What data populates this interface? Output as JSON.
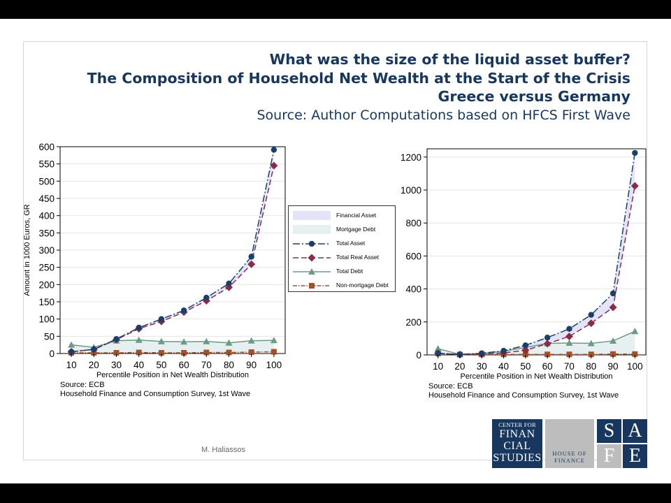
{
  "title": {
    "line1": "What was the size of the liquid asset buffer?",
    "line2": "The Composition of Household Net Wealth at the Start of the Crisis",
    "line3": "Greece versus Germany",
    "source": "Source: Author Computations based on HFCS  First Wave"
  },
  "colors": {
    "title": "#17375e",
    "financial_asset_fill": "#e4e4f8",
    "mortgage_debt_fill": "#e6f0f0",
    "total_asset": "#1a3f6b",
    "total_real_asset": "#8b2b45",
    "total_debt": "#6b9a85",
    "non_mortgage_debt": "#a0522d"
  },
  "legend": {
    "items": [
      {
        "label": "Financial Asset",
        "kind": "area-fin"
      },
      {
        "label": "Mortgage Debt",
        "kind": "area-mort"
      },
      {
        "label": "Total Asset",
        "kind": "line-total-asset"
      },
      {
        "label": "Total Real Asset",
        "kind": "line-real-asset"
      },
      {
        "label": "Total Debt",
        "kind": "line-total-debt"
      },
      {
        "label": "Non-mortgage Debt",
        "kind": "line-nonmort"
      }
    ]
  },
  "chart_data": [
    {
      "type": "line",
      "id": "greece",
      "x": [
        10,
        20,
        30,
        40,
        50,
        60,
        70,
        80,
        90,
        100
      ],
      "xlabel": "Percentile Position in Net Wealth Distribution",
      "ylabel": "Amount in 1000 Euros, GR",
      "ylim": [
        0,
        600
      ],
      "yticks": [
        0,
        50,
        100,
        150,
        200,
        250,
        300,
        350,
        400,
        450,
        500,
        550,
        600
      ],
      "xticks": [
        10,
        20,
        30,
        40,
        50,
        60,
        70,
        80,
        90,
        100
      ],
      "series": [
        {
          "name": "Total Asset",
          "values": [
            5,
            12,
            42,
            75,
            100,
            125,
            162,
            203,
            281,
            591
          ]
        },
        {
          "name": "Total Real Asset",
          "values": [
            5,
            12,
            40,
            72,
            93,
            120,
            153,
            192,
            259,
            545
          ]
        },
        {
          "name": "Total Debt",
          "values": [
            25,
            18,
            37,
            39,
            35,
            34,
            35,
            31,
            37,
            38
          ]
        },
        {
          "name": "Non-mortgage Debt",
          "values": [
            2,
            2,
            2,
            3,
            2,
            2,
            3,
            3,
            4,
            5
          ]
        }
      ],
      "note1": "Source: ECB",
      "note2": "Household Finance and Consumption Survey, 1st Wave"
    },
    {
      "type": "line",
      "id": "germany",
      "x": [
        10,
        20,
        30,
        40,
        50,
        60,
        70,
        80,
        90,
        100
      ],
      "xlabel": "Percentile Position in Net Wealth Distribution",
      "ylabel": "",
      "ylim": [
        0,
        1250
      ],
      "yticks": [
        0,
        200,
        400,
        600,
        800,
        1000,
        1200
      ],
      "xticks": [
        10,
        20,
        30,
        40,
        50,
        60,
        70,
        80,
        90,
        100
      ],
      "series": [
        {
          "name": "Total Asset",
          "values": [
            10,
            3,
            10,
            25,
            58,
            105,
            158,
            243,
            373,
            1225
          ]
        },
        {
          "name": "Total Real Asset",
          "values": [
            10,
            2,
            5,
            12,
            28,
            68,
            112,
            192,
            288,
            1025
          ]
        },
        {
          "name": "Total Debt",
          "values": [
            38,
            3,
            8,
            22,
            45,
            70,
            72,
            70,
            85,
            143
          ]
        },
        {
          "name": "Non-mortgage Debt",
          "values": [
            8,
            2,
            3,
            3,
            3,
            3,
            3,
            3,
            5,
            5
          ]
        }
      ],
      "note1": "Source: ECB",
      "note2": "Household Finance and Consumption Survey, 1st Wave"
    }
  ],
  "footer": {
    "author": "M. Haliassos"
  },
  "logos": {
    "cfs_top": "CENTER FOR",
    "cfs_words": [
      "FINAN",
      "CIAL",
      "STUDIES"
    ],
    "hof_line1": "HOUSE OF",
    "hof_line2": "FINANCE",
    "safe_letters": [
      "S",
      "A",
      "F",
      "E"
    ]
  }
}
